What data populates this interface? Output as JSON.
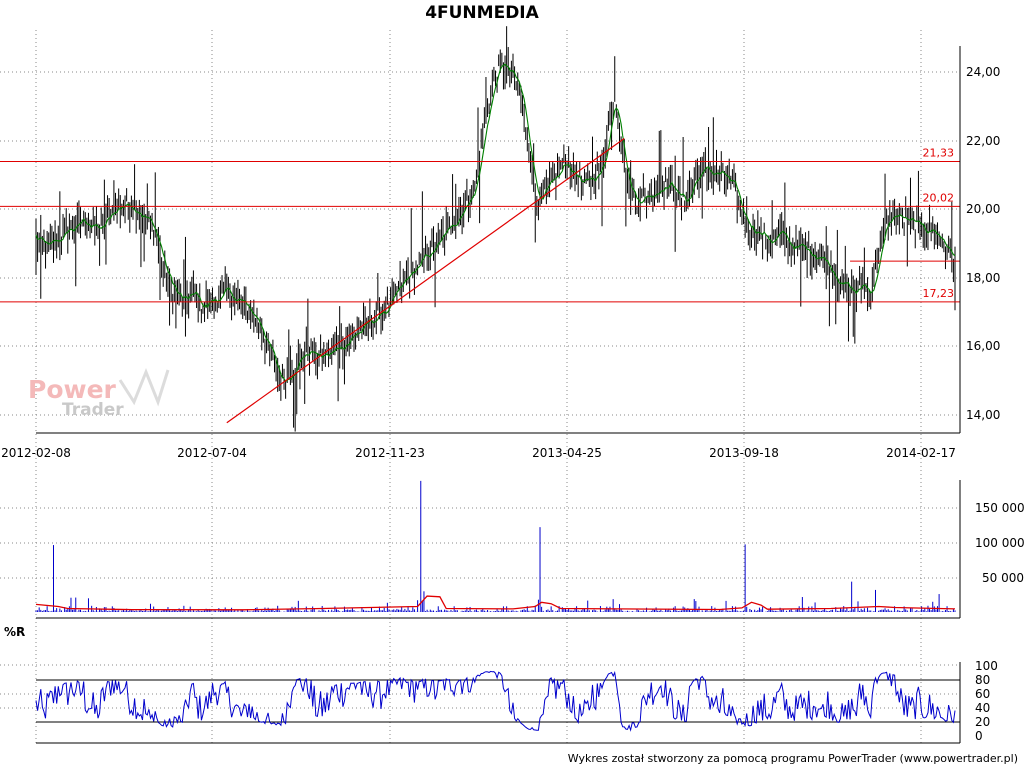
{
  "chart_data": [
    {
      "type": "candlestick-line",
      "title": "4FUNMEDIA",
      "x_ticks": [
        "2012-02-08",
        "2012-07-04",
        "2012-11-23",
        "2013-04-25",
        "2013-09-18",
        "2014-02-17"
      ],
      "y_ticks": [
        "14,00",
        "16,00",
        "18,00",
        "20,00",
        "22,00",
        "24,00"
      ],
      "ylim": [
        13.4,
        25.0
      ],
      "grid": true,
      "watermark": [
        "Power",
        "Trader"
      ],
      "close_path": [
        [
          0,
          19.1
        ],
        [
          6,
          18.8
        ],
        [
          12,
          19.0
        ],
        [
          20,
          19.3
        ],
        [
          30,
          19.6
        ],
        [
          40,
          19.3
        ],
        [
          48,
          19.9
        ],
        [
          56,
          20.1
        ],
        [
          62,
          20.0
        ],
        [
          70,
          19.6
        ],
        [
          76,
          19.1
        ],
        [
          80,
          18.2
        ],
        [
          86,
          17.6
        ],
        [
          92,
          17.2
        ],
        [
          98,
          17.5
        ],
        [
          104,
          17.1
        ],
        [
          112,
          17.3
        ],
        [
          120,
          17.5
        ],
        [
          128,
          17.2
        ],
        [
          134,
          17.0
        ],
        [
          140,
          16.6
        ],
        [
          146,
          15.9
        ],
        [
          150,
          15.3
        ],
        [
          155,
          14.9
        ],
        [
          160,
          15.2
        ],
        [
          166,
          15.6
        ],
        [
          172,
          15.8
        ],
        [
          178,
          15.6
        ],
        [
          184,
          15.7
        ],
        [
          190,
          15.9
        ],
        [
          198,
          16.2
        ],
        [
          206,
          16.5
        ],
        [
          214,
          16.8
        ],
        [
          222,
          17.1
        ],
        [
          228,
          17.6
        ],
        [
          234,
          18.0
        ],
        [
          240,
          18.3
        ],
        [
          246,
          18.6
        ],
        [
          252,
          18.9
        ],
        [
          258,
          19.3
        ],
        [
          264,
          19.7
        ],
        [
          270,
          20.1
        ],
        [
          276,
          20.6
        ],
        [
          280,
          21.8
        ],
        [
          284,
          22.9
        ],
        [
          288,
          23.7
        ],
        [
          292,
          24.2
        ],
        [
          298,
          23.9
        ],
        [
          304,
          23.4
        ],
        [
          308,
          22.3
        ],
        [
          312,
          21.0
        ],
        [
          316,
          20.1
        ],
        [
          320,
          20.4
        ],
        [
          326,
          20.8
        ],
        [
          332,
          21.3
        ],
        [
          338,
          21.0
        ],
        [
          344,
          20.6
        ],
        [
          350,
          20.9
        ],
        [
          356,
          21.1
        ],
        [
          360,
          22.4
        ],
        [
          364,
          23.3
        ],
        [
          368,
          21.9
        ],
        [
          372,
          20.6
        ],
        [
          378,
          20.2
        ],
        [
          384,
          20.3
        ],
        [
          390,
          20.5
        ],
        [
          396,
          20.7
        ],
        [
          402,
          20.5
        ],
        [
          408,
          20.1
        ],
        [
          414,
          20.8
        ],
        [
          420,
          21.1
        ],
        [
          426,
          21.0
        ],
        [
          432,
          20.9
        ],
        [
          438,
          20.6
        ],
        [
          444,
          19.8
        ],
        [
          450,
          19.4
        ],
        [
          456,
          19.2
        ],
        [
          462,
          19.0
        ],
        [
          468,
          19.2
        ],
        [
          474,
          18.9
        ],
        [
          480,
          18.8
        ],
        [
          486,
          18.7
        ],
        [
          492,
          18.6
        ],
        [
          498,
          18.3
        ],
        [
          504,
          17.9
        ],
        [
          510,
          17.6
        ],
        [
          516,
          17.5
        ],
        [
          520,
          17.8
        ],
        [
          524,
          17.4
        ],
        [
          528,
          18.2
        ],
        [
          532,
          19.1
        ],
        [
          536,
          19.6
        ],
        [
          540,
          19.8
        ],
        [
          546,
          19.6
        ],
        [
          552,
          19.5
        ],
        [
          558,
          19.4
        ],
        [
          564,
          19.3
        ],
        [
          570,
          19.0
        ],
        [
          574,
          18.7
        ],
        [
          578,
          18.4
        ]
      ],
      "levels": [
        {
          "value": 21.33,
          "label": "21,33",
          "x_from": 0,
          "x_to": 578
        },
        {
          "value": 20.02,
          "label": "20,02",
          "x_from": 0,
          "x_to": 578
        },
        {
          "value": 18.42,
          "label": "",
          "x_from": 512,
          "x_to": 578
        },
        {
          "value": 17.23,
          "label": "17,23",
          "x_from": 0,
          "x_to": 578
        }
      ],
      "trendline": {
        "from": [
          120,
          13.7
        ],
        "to": [
          370,
          22.0
        ]
      }
    },
    {
      "type": "bar",
      "panel": "volume",
      "y_ticks": [
        "50 000",
        "100 000",
        "150 000"
      ],
      "ylim": [
        0,
        190000
      ],
      "spikes": [
        {
          "x": 11,
          "value": 97000
        },
        {
          "x": 242,
          "value": 190000
        },
        {
          "x": 244,
          "value": 30000
        },
        {
          "x": 317,
          "value": 123000
        },
        {
          "x": 446,
          "value": 98000
        },
        {
          "x": 513,
          "value": 44000
        },
        {
          "x": 528,
          "value": 32000
        },
        {
          "x": 568,
          "value": 26000
        }
      ],
      "avg_line": [
        [
          0,
          11000
        ],
        [
          14,
          8000
        ],
        [
          20,
          5000
        ],
        [
          60,
          3500
        ],
        [
          130,
          3200
        ],
        [
          180,
          5000
        ],
        [
          240,
          8000
        ],
        [
          246,
          23000
        ],
        [
          254,
          22000
        ],
        [
          258,
          5000
        ],
        [
          300,
          4500
        ],
        [
          314,
          8000
        ],
        [
          318,
          14000
        ],
        [
          324,
          12000
        ],
        [
          330,
          5000
        ],
        [
          430,
          3600
        ],
        [
          444,
          6000
        ],
        [
          450,
          14000
        ],
        [
          456,
          10000
        ],
        [
          460,
          4000
        ],
        [
          500,
          5000
        ],
        [
          530,
          8000
        ],
        [
          540,
          6500
        ],
        [
          578,
          4500
        ]
      ]
    },
    {
      "type": "line",
      "panel": "indicator",
      "label": "%R",
      "y_ticks": [
        "0",
        "20",
        "40",
        "60",
        "80",
        "100"
      ],
      "ylim": [
        0,
        100
      ],
      "ref_lines": [
        20,
        80
      ],
      "series": [
        {
          "name": "%R",
          "color": "#0000cc"
        }
      ]
    }
  ],
  "footer": "Wykres został stworzony za pomocą programu PowerTrader (www.powertrader.pl)",
  "colors": {
    "price": "#000000",
    "ma": "#008000",
    "level": "#e00000",
    "volume": "#0000cc",
    "indicator": "#0000cc",
    "grid": "#888888"
  }
}
